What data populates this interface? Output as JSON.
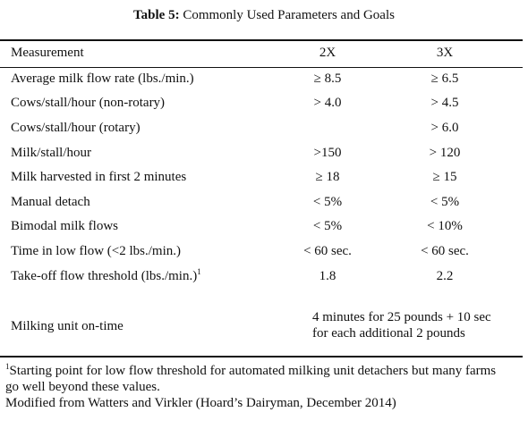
{
  "caption": {
    "label": "Table 5:",
    "title": "Commonly Used Parameters and Goals"
  },
  "header": {
    "measurement": "Measurement",
    "col_2x": "2X",
    "col_3x": "3X"
  },
  "rows": [
    {
      "label": "Average milk flow rate (lbs./min.)",
      "v2x": "≥ 8.5",
      "v3x": "≥ 6.5"
    },
    {
      "label": "Cows/stall/hour (non-rotary)",
      "v2x": "> 4.0",
      "v3x": "> 4.5"
    },
    {
      "label": "Cows/stall/hour (rotary)",
      "v2x": "",
      "v3x": "> 6.0"
    },
    {
      "label": "Milk/stall/hour",
      "v2x": ">150",
      "v3x": "> 120"
    },
    {
      "label": "Milk harvested in first 2 minutes",
      "v2x": "≥ 18",
      "v3x": "≥ 15"
    },
    {
      "label": "Manual detach",
      "v2x": "< 5%",
      "v3x": "< 5%"
    },
    {
      "label": "Bimodal milk flows",
      "v2x": "< 5%",
      "v3x": "< 10%"
    },
    {
      "label": "Time in low flow (<2 lbs./min.)",
      "v2x": "< 60 sec.",
      "v3x": "< 60 sec."
    },
    {
      "label": "Take-off flow threshold (lbs./min.)",
      "label_sup": "1",
      "v2x": "1.8",
      "v3x": "2.2"
    }
  ],
  "ontime": {
    "label": "Milking unit on-time",
    "value_line1": "4 minutes for 25 pounds + 10 sec",
    "value_line2": "for each additional 2 pounds"
  },
  "footnote": {
    "marker": "1",
    "line1": "Starting point for low flow threshold for automated milking unit detachers but many farms",
    "line2": "go well beyond these values.",
    "line3": "Modified from Watters and Virkler (Hoard’s Dairyman, December 2014)"
  }
}
